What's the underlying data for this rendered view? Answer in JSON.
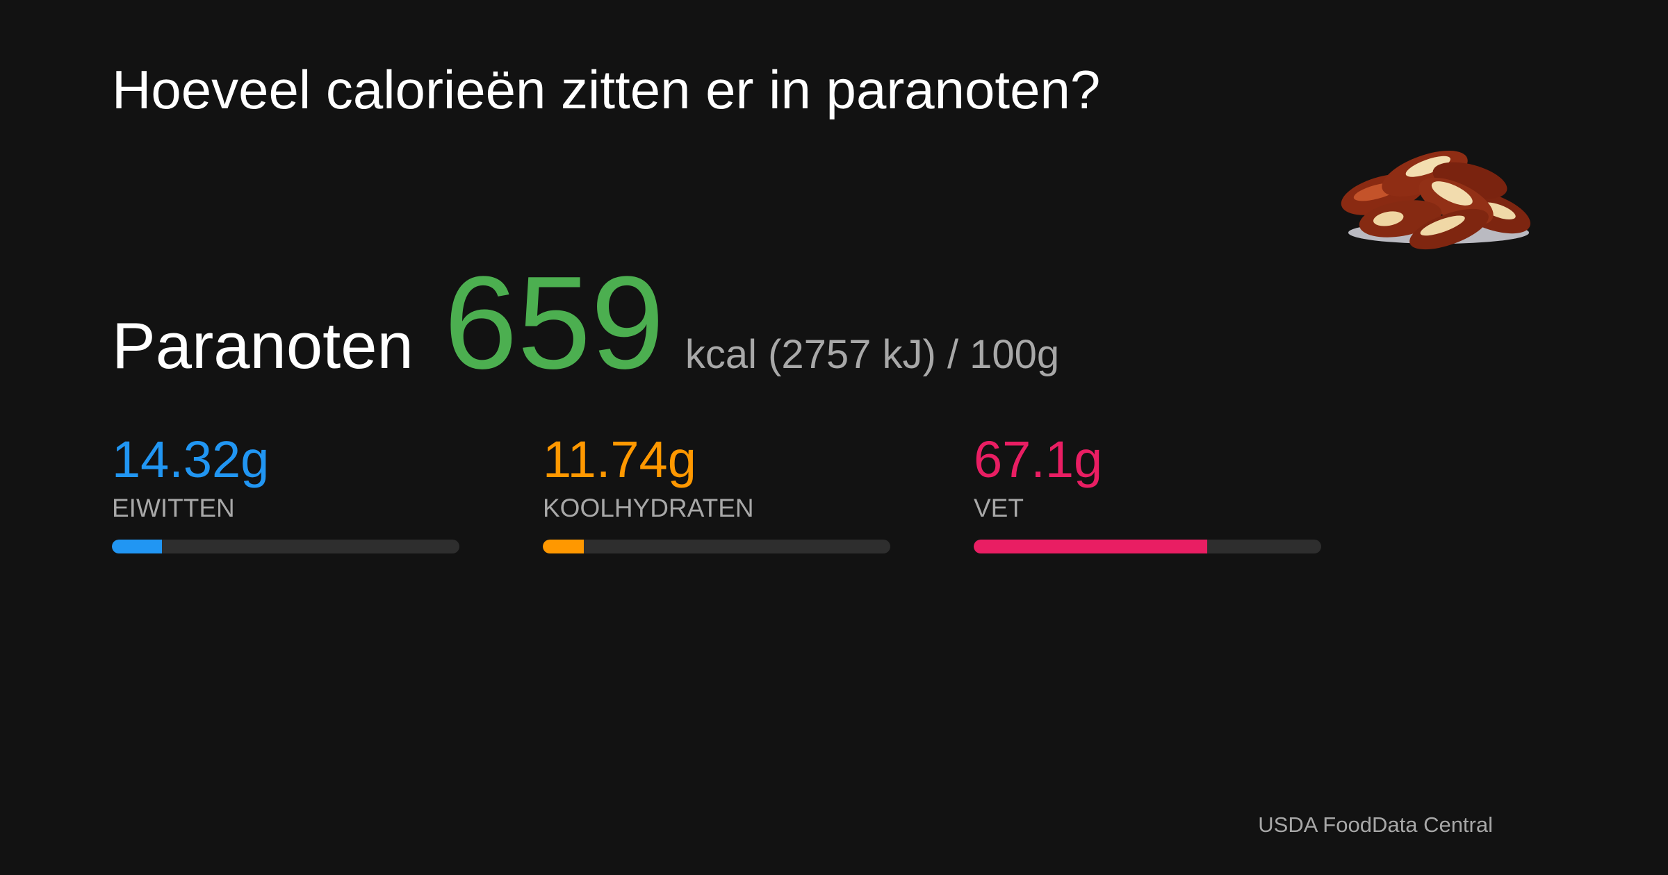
{
  "header": {
    "title": "Hoeveel calorieën zitten er in paranoten?"
  },
  "food": {
    "name": "Paranoten",
    "calories": {
      "value": 659,
      "color": "#4caf50"
    },
    "energy_text": "kcal (2757 kJ) /",
    "serving": {
      "value": 100,
      "label": "100g"
    }
  },
  "macros": [
    {
      "value": 14.32,
      "label": "14.32g",
      "name": "EIWITTEN",
      "color": "#2196f3"
    },
    {
      "value": 11.74,
      "label": "11.74g",
      "name": "KOOLHYDRATEN",
      "color": "#ff9800"
    },
    {
      "value": 67.1,
      "label": "67.1g",
      "name": "VET",
      "color": "#e91e63"
    }
  ],
  "footer": {
    "source": "USDA FoodData Central"
  }
}
